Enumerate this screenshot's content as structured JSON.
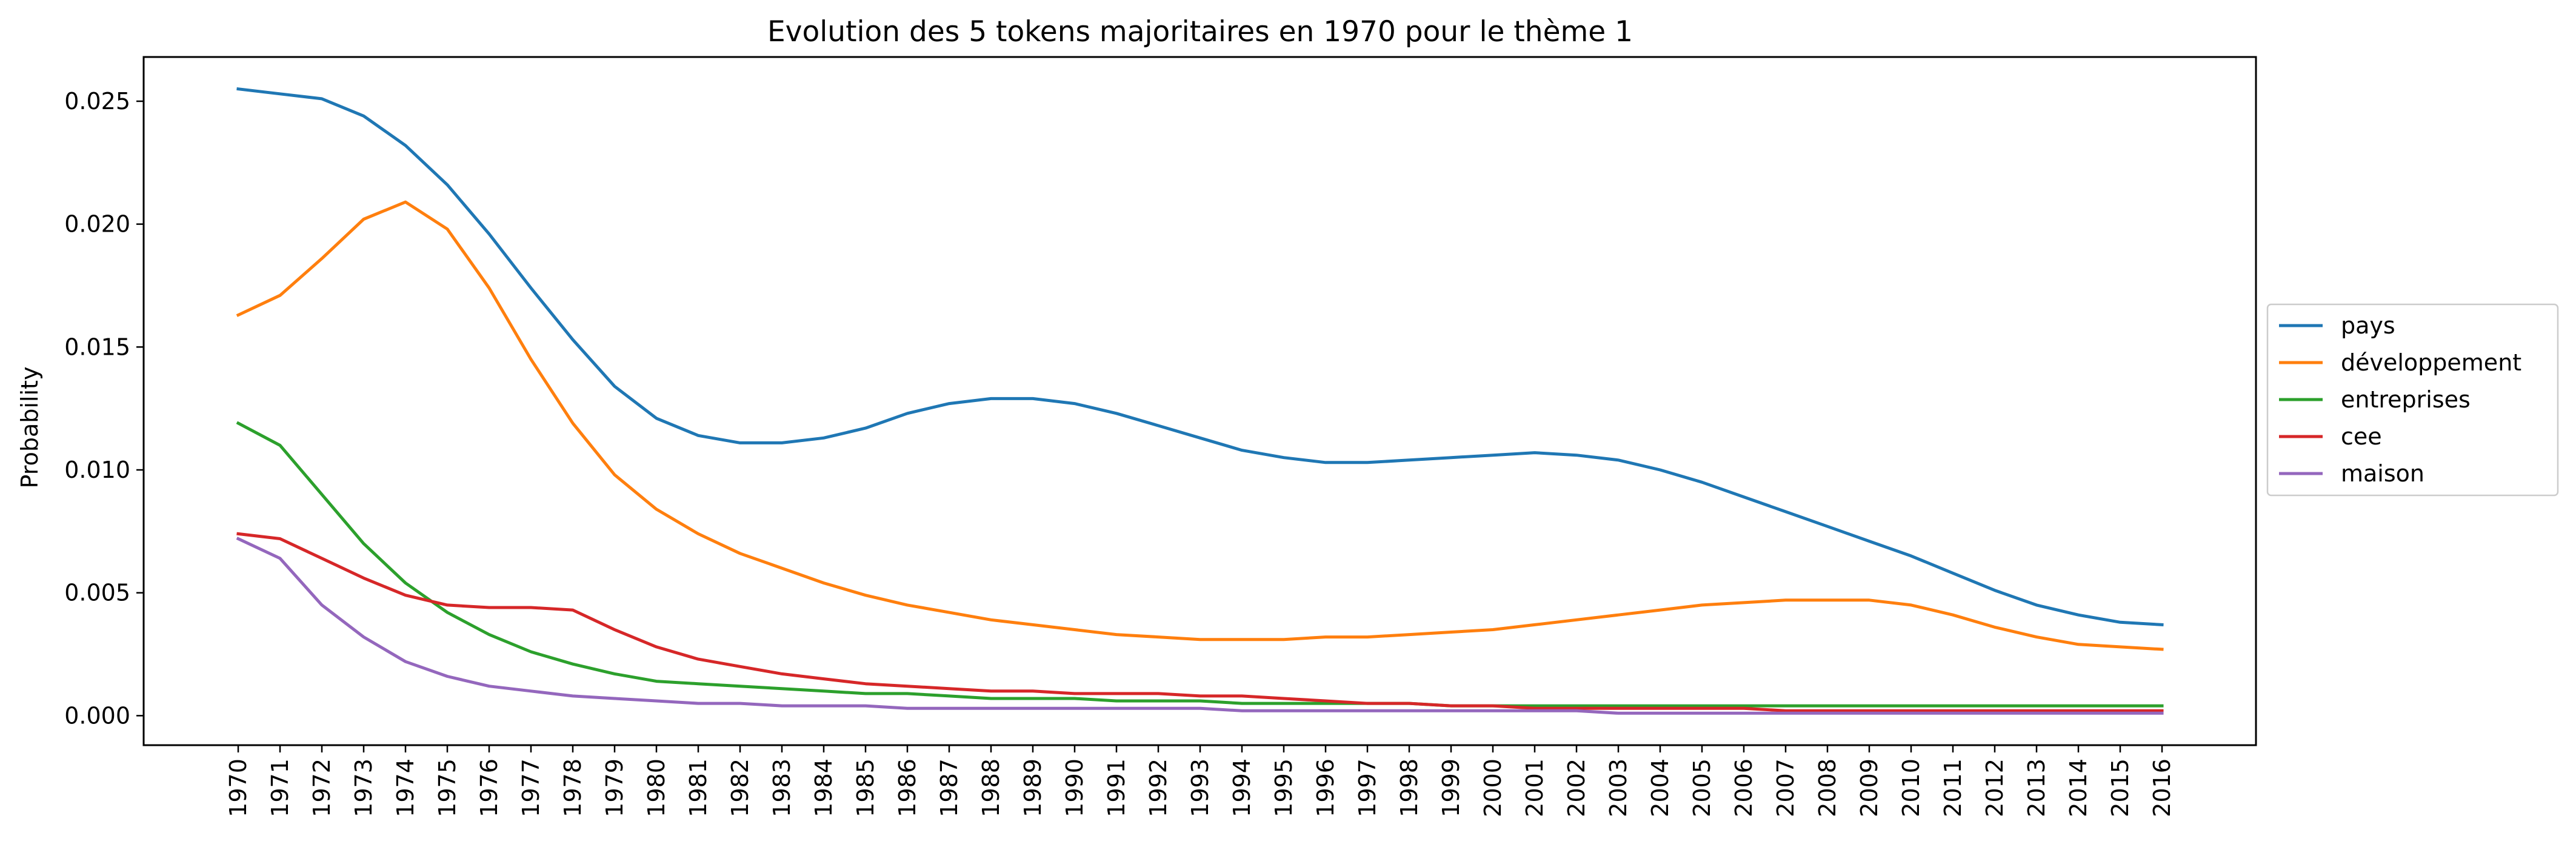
{
  "chart_data": {
    "type": "line",
    "title": "Evolution des 5 tokens majoritaires en 1970 pour le thème 1",
    "xlabel": "",
    "ylabel": "Probability",
    "ylim": [
      -0.0012,
      0.0268
    ],
    "yticks": [
      0.0,
      0.005,
      0.01,
      0.015,
      0.02,
      0.025
    ],
    "ytick_labels": [
      "0.000",
      "0.005",
      "0.010",
      "0.015",
      "0.020",
      "0.025"
    ],
    "x": [
      "1970",
      "1971",
      "1972",
      "1973",
      "1974",
      "1975",
      "1976",
      "1977",
      "1978",
      "1979",
      "1980",
      "1981",
      "1982",
      "1983",
      "1984",
      "1985",
      "1986",
      "1987",
      "1988",
      "1989",
      "1990",
      "1991",
      "1992",
      "1993",
      "1994",
      "1995",
      "1996",
      "1997",
      "1998",
      "1999",
      "2000",
      "2001",
      "2002",
      "2003",
      "2004",
      "2005",
      "2006",
      "2007",
      "2008",
      "2009",
      "2010",
      "2011",
      "2012",
      "2013",
      "2014",
      "2015",
      "2016"
    ],
    "legend_position": "center-right, outside plot",
    "grid": false,
    "series": [
      {
        "name": "pays",
        "color": "#1f77b4",
        "values": [
          0.0255,
          0.0253,
          0.0251,
          0.0244,
          0.0232,
          0.0216,
          0.0196,
          0.0174,
          0.0153,
          0.0134,
          0.0121,
          0.0114,
          0.0111,
          0.0111,
          0.0113,
          0.0117,
          0.0123,
          0.0127,
          0.0129,
          0.0129,
          0.0127,
          0.0123,
          0.0118,
          0.0113,
          0.0108,
          0.0105,
          0.0103,
          0.0103,
          0.0104,
          0.0105,
          0.0106,
          0.0107,
          0.0106,
          0.0104,
          0.01,
          0.0095,
          0.0089,
          0.0083,
          0.0077,
          0.0071,
          0.0065,
          0.0058,
          0.0051,
          0.0045,
          0.0041,
          0.0038,
          0.0037
        ]
      },
      {
        "name": "développement",
        "color": "#ff7f0e",
        "values": [
          0.0163,
          0.0171,
          0.0186,
          0.0202,
          0.0209,
          0.0198,
          0.0174,
          0.0145,
          0.0119,
          0.0098,
          0.0084,
          0.0074,
          0.0066,
          0.006,
          0.0054,
          0.0049,
          0.0045,
          0.0042,
          0.0039,
          0.0037,
          0.0035,
          0.0033,
          0.0032,
          0.0031,
          0.0031,
          0.0031,
          0.0032,
          0.0032,
          0.0033,
          0.0034,
          0.0035,
          0.0037,
          0.0039,
          0.0041,
          0.0043,
          0.0045,
          0.0046,
          0.0047,
          0.0047,
          0.0047,
          0.0045,
          0.0041,
          0.0036,
          0.0032,
          0.0029,
          0.0028,
          0.0027
        ]
      },
      {
        "name": "entreprises",
        "color": "#2ca02c",
        "values": [
          0.0119,
          0.011,
          0.009,
          0.007,
          0.0054,
          0.0042,
          0.0033,
          0.0026,
          0.0021,
          0.0017,
          0.0014,
          0.0013,
          0.0012,
          0.0011,
          0.001,
          0.0009,
          0.0009,
          0.0008,
          0.0007,
          0.0007,
          0.0007,
          0.0006,
          0.0006,
          0.0006,
          0.0005,
          0.0005,
          0.0005,
          0.0005,
          0.0005,
          0.0004,
          0.0004,
          0.0004,
          0.0004,
          0.0004,
          0.0004,
          0.0004,
          0.0004,
          0.0004,
          0.0004,
          0.0004,
          0.0004,
          0.0004,
          0.0004,
          0.0004,
          0.0004,
          0.0004,
          0.0004
        ]
      },
      {
        "name": "cee",
        "color": "#d62728",
        "values": [
          0.0074,
          0.0072,
          0.0064,
          0.0056,
          0.0049,
          0.0045,
          0.0044,
          0.0044,
          0.0043,
          0.0035,
          0.0028,
          0.0023,
          0.002,
          0.0017,
          0.0015,
          0.0013,
          0.0012,
          0.0011,
          0.001,
          0.001,
          0.0009,
          0.0009,
          0.0009,
          0.0008,
          0.0008,
          0.0007,
          0.0006,
          0.0005,
          0.0005,
          0.0004,
          0.0004,
          0.0003,
          0.0003,
          0.0003,
          0.0003,
          0.0003,
          0.0003,
          0.0002,
          0.0002,
          0.0002,
          0.0002,
          0.0002,
          0.0002,
          0.0002,
          0.0002,
          0.0002,
          0.0002
        ]
      },
      {
        "name": "maison",
        "color": "#9467bd",
        "values": [
          0.0072,
          0.0064,
          0.0045,
          0.0032,
          0.0022,
          0.0016,
          0.0012,
          0.001,
          0.0008,
          0.0007,
          0.0006,
          0.0005,
          0.0005,
          0.0004,
          0.0004,
          0.0004,
          0.0003,
          0.0003,
          0.0003,
          0.0003,
          0.0003,
          0.0003,
          0.0003,
          0.0003,
          0.0002,
          0.0002,
          0.0002,
          0.0002,
          0.0002,
          0.0002,
          0.0002,
          0.0002,
          0.0002,
          0.0001,
          0.0001,
          0.0001,
          0.0001,
          0.0001,
          0.0001,
          0.0001,
          0.0001,
          0.0001,
          0.0001,
          0.0001,
          0.0001,
          0.0001,
          0.0001
        ]
      }
    ]
  }
}
